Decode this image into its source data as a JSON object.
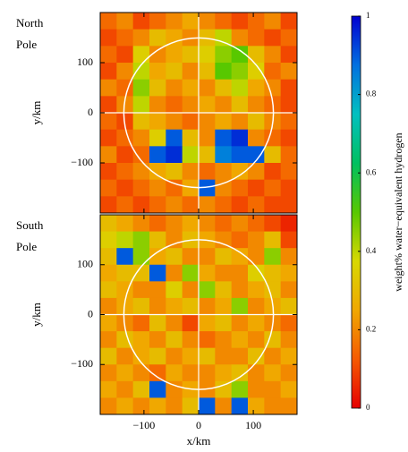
{
  "chart_data": {
    "type": "heatmap",
    "xlabel": "x/km",
    "ylabel": "y/km",
    "xlim": [
      -180,
      180
    ],
    "ylim": [
      -200,
      200
    ],
    "xticks": [
      {
        "value": -100,
        "label": "−100"
      },
      0,
      100
    ],
    "yticks": [
      {
        "value": -100,
        "label": "−100"
      },
      0,
      100
    ],
    "colorbar": {
      "label": "weight% water−equivalent hydrogen",
      "lim": [
        0,
        1
      ],
      "ticks": [
        0,
        0.2,
        0.4,
        0.6,
        0.8,
        1
      ],
      "colors": [
        "#e60000",
        "#f55a00",
        "#f0a800",
        "#d8d800",
        "#58c800",
        "#00c060",
        "#00c0c0",
        "#0070e0",
        "#0000d0"
      ]
    },
    "panels": [
      {
        "title": "North Pole",
        "z": [
          [
            0.15,
            0.2,
            0.1,
            0.15,
            0.2,
            0.25,
            0.2,
            0.15,
            0.1,
            0.15,
            0.2,
            0.1
          ],
          [
            0.1,
            0.15,
            0.2,
            0.3,
            0.25,
            0.2,
            0.3,
            0.4,
            0.2,
            0.15,
            0.1,
            0.15
          ],
          [
            0.15,
            0.1,
            0.35,
            0.2,
            0.25,
            0.3,
            0.35,
            0.45,
            0.5,
            0.3,
            0.2,
            0.1
          ],
          [
            0.1,
            0.2,
            0.4,
            0.25,
            0.3,
            0.2,
            0.3,
            0.5,
            0.45,
            0.35,
            0.15,
            0.2
          ],
          [
            0.2,
            0.15,
            0.45,
            0.3,
            0.2,
            0.25,
            0.2,
            0.3,
            0.4,
            0.25,
            0.2,
            0.1
          ],
          [
            0.1,
            0.2,
            0.4,
            0.2,
            0.15,
            0.2,
            0.25,
            0.2,
            0.3,
            0.2,
            0.15,
            0.1
          ],
          [
            0.15,
            0.1,
            0.3,
            0.25,
            0.2,
            0.15,
            0.2,
            0.25,
            0.2,
            0.3,
            0.2,
            0.15
          ],
          [
            0.1,
            0.15,
            0.2,
            0.35,
            0.9,
            0.3,
            0.2,
            0.9,
            0.95,
            0.2,
            0.15,
            0.1
          ],
          [
            0.2,
            0.1,
            0.15,
            0.9,
            0.95,
            0.4,
            0.3,
            0.85,
            0.9,
            0.9,
            0.3,
            0.15
          ],
          [
            0.1,
            0.15,
            0.2,
            0.25,
            0.3,
            0.2,
            0.15,
            0.2,
            0.25,
            0.2,
            0.1,
            0.15
          ],
          [
            0.15,
            0.1,
            0.15,
            0.2,
            0.15,
            0.25,
            0.9,
            0.2,
            0.15,
            0.1,
            0.15,
            0.1
          ],
          [
            0.1,
            0.15,
            0.1,
            0.15,
            0.2,
            0.15,
            0.2,
            0.15,
            0.1,
            0.15,
            0.1,
            0.1
          ]
        ]
      },
      {
        "title": "South Pole",
        "z": [
          [
            0.3,
            0.25,
            0.2,
            0.15,
            0.2,
            0.25,
            0.2,
            0.15,
            0.2,
            0.15,
            0.1,
            0.05
          ],
          [
            0.35,
            0.4,
            0.45,
            0.3,
            0.2,
            0.3,
            0.25,
            0.2,
            0.15,
            0.2,
            0.3,
            0.1
          ],
          [
            0.3,
            0.9,
            0.45,
            0.25,
            0.3,
            0.2,
            0.2,
            0.3,
            0.25,
            0.2,
            0.45,
            0.2
          ],
          [
            0.25,
            0.3,
            0.3,
            0.9,
            0.2,
            0.45,
            0.25,
            0.2,
            0.2,
            0.35,
            0.3,
            0.25
          ],
          [
            0.3,
            0.25,
            0.2,
            0.2,
            0.35,
            0.2,
            0.45,
            0.3,
            0.2,
            0.25,
            0.3,
            0.2
          ],
          [
            0.2,
            0.25,
            0.3,
            0.2,
            0.25,
            0.3,
            0.2,
            0.25,
            0.45,
            0.2,
            0.25,
            0.3
          ],
          [
            0.25,
            0.2,
            0.15,
            0.3,
            0.2,
            0.1,
            0.25,
            0.3,
            0.2,
            0.25,
            0.2,
            0.15
          ],
          [
            0.2,
            0.3,
            0.25,
            0.2,
            0.3,
            0.2,
            0.15,
            0.2,
            0.25,
            0.2,
            0.3,
            0.2
          ],
          [
            0.3,
            0.2,
            0.25,
            0.3,
            0.2,
            0.25,
            0.3,
            0.2,
            0.2,
            0.3,
            0.2,
            0.25
          ],
          [
            0.2,
            0.25,
            0.2,
            0.15,
            0.25,
            0.2,
            0.2,
            0.25,
            0.3,
            0.2,
            0.25,
            0.2
          ],
          [
            0.25,
            0.2,
            0.3,
            0.9,
            0.2,
            0.25,
            0.2,
            0.3,
            0.45,
            0.2,
            0.2,
            0.25
          ],
          [
            0.2,
            0.25,
            0.2,
            0.25,
            0.2,
            0.3,
            0.9,
            0.2,
            0.9,
            0.25,
            0.2,
            0.2
          ]
        ]
      }
    ]
  }
}
